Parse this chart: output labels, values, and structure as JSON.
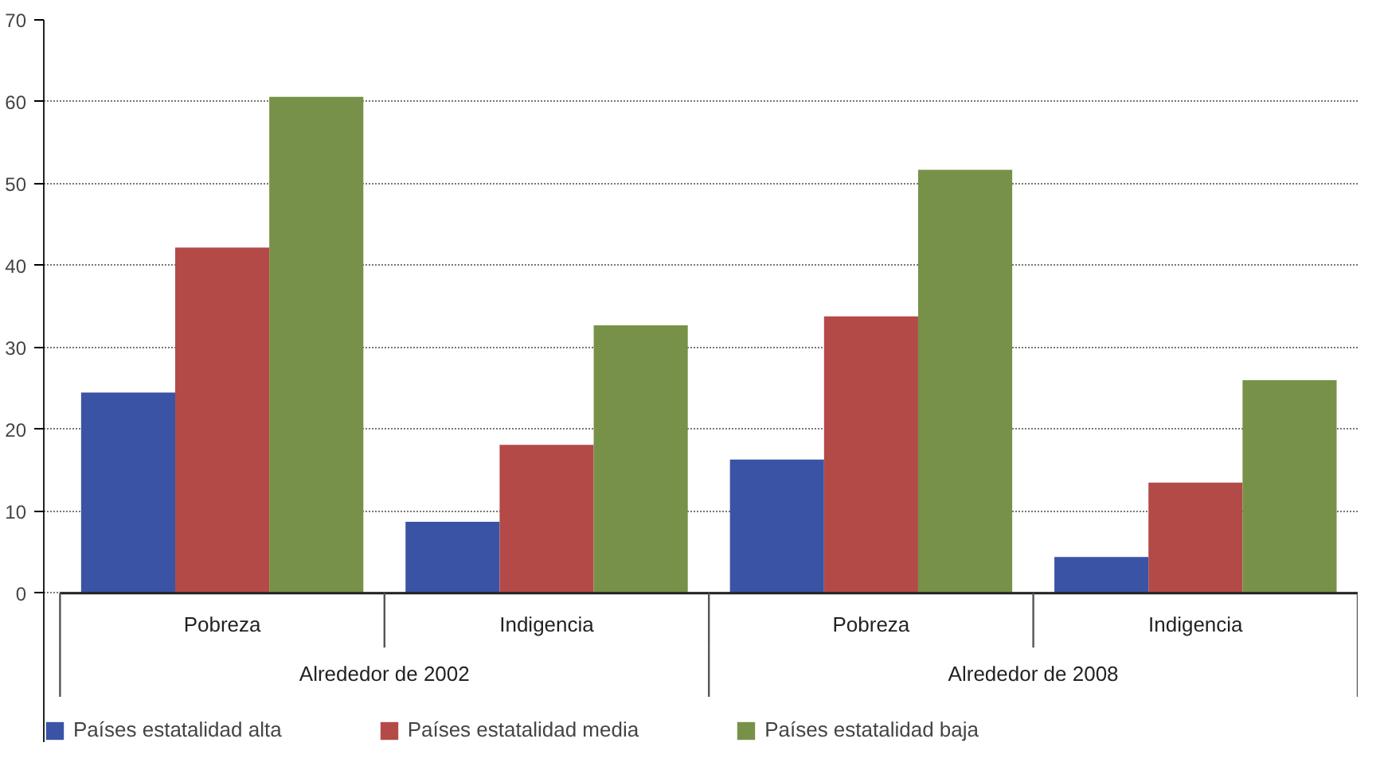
{
  "chart_data": {
    "type": "bar",
    "categories": [
      "Pobreza",
      "Indigencia",
      "Pobreza",
      "Indigencia"
    ],
    "annotations": [
      "Alrededor de 2002",
      "Alrededor de 2008"
    ],
    "series": [
      {
        "name": "Países estatalidad alta",
        "color": "#3a53a4",
        "values": [
          24.5,
          8.7,
          16.3,
          4.4
        ]
      },
      {
        "name": "Países estatalidad media",
        "color": "#b34a48",
        "values": [
          42.2,
          18.1,
          33.8,
          13.5
        ]
      },
      {
        "name": "Países estatalidad baja",
        "color": "#789148",
        "values": [
          60.6,
          32.7,
          51.7,
          26.0
        ]
      }
    ],
    "ylim": [
      0,
      70
    ],
    "yticks": [
      0,
      10,
      20,
      30,
      40,
      50,
      60,
      70
    ],
    "grid": "y",
    "legend": "bottom"
  }
}
